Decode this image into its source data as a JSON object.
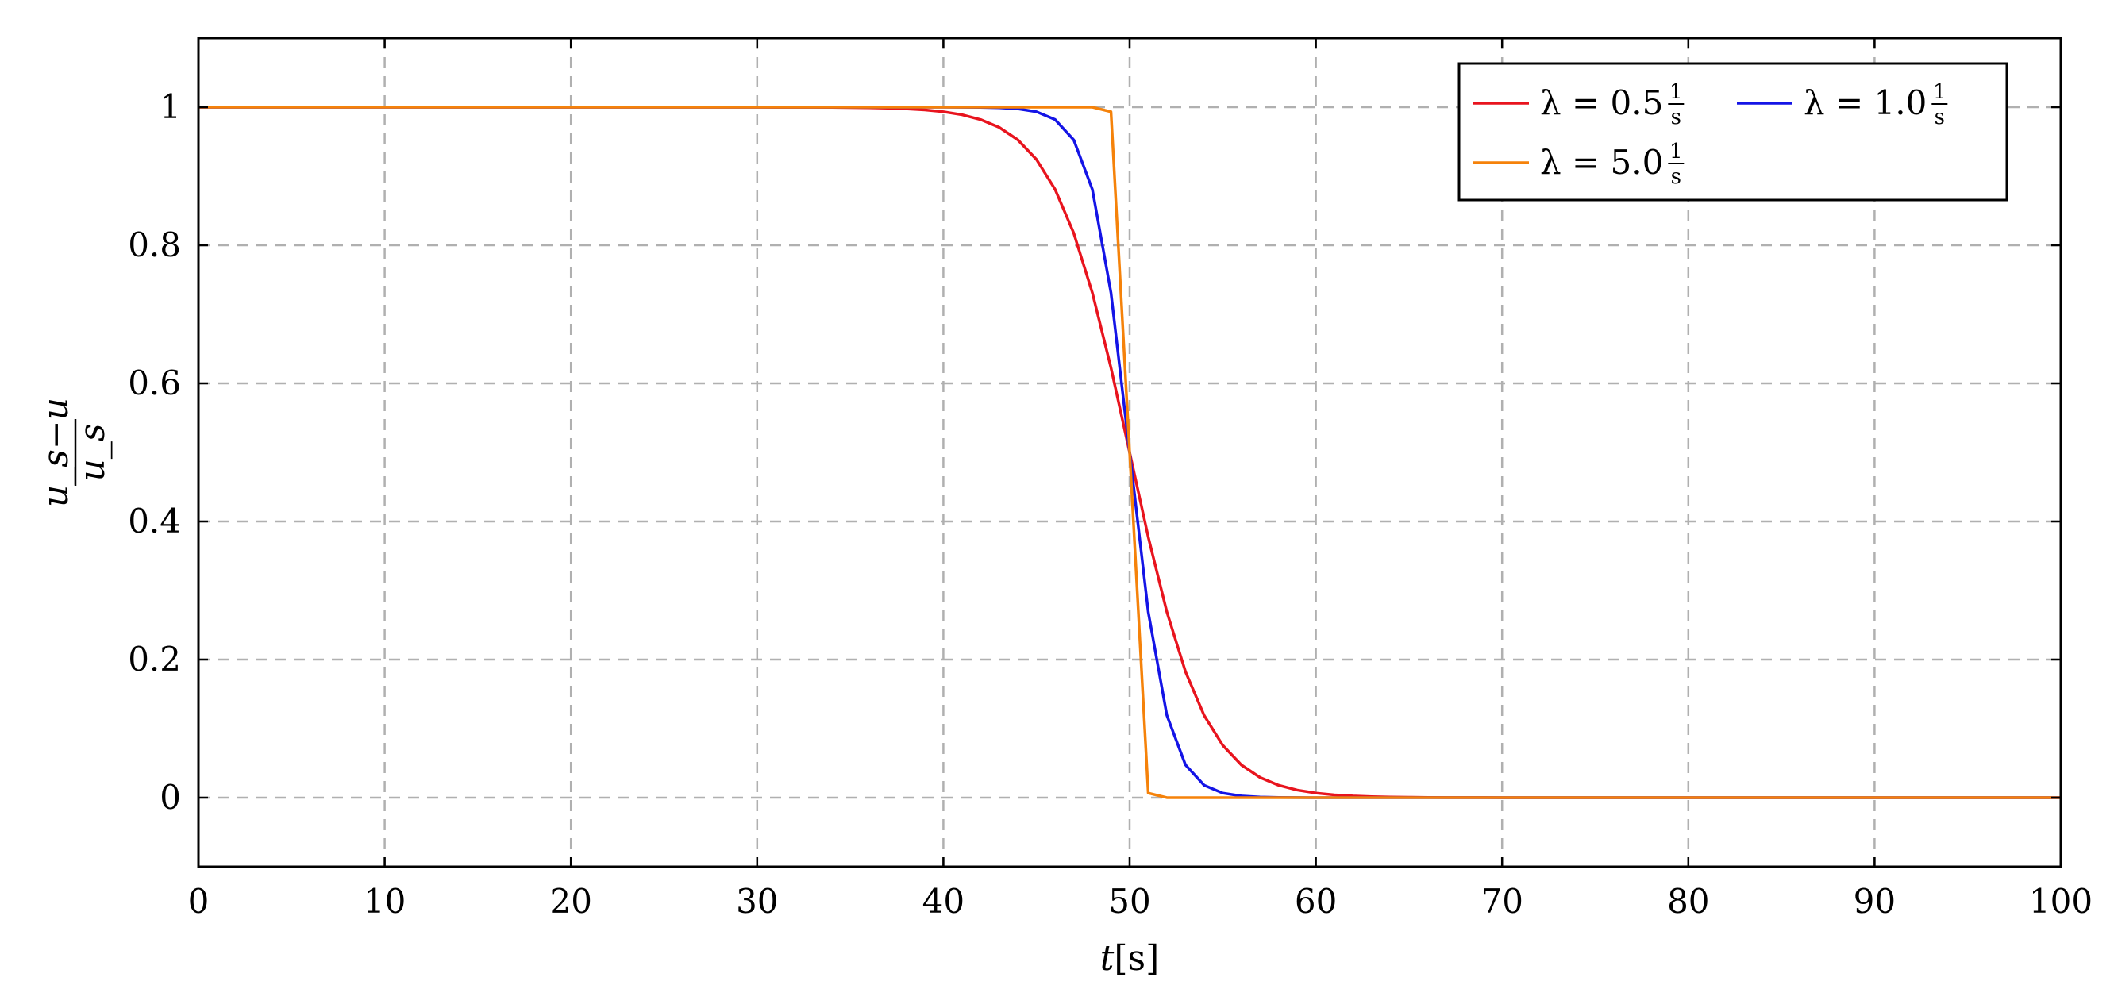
{
  "chart_data": {
    "type": "line",
    "xlabel_var": "t",
    "xlabel_unit": "[s]",
    "ylabel_num": "u_s−u",
    "ylabel_den": "u_s",
    "xlim": [
      0,
      100
    ],
    "ylim": [
      -0.1,
      1.1
    ],
    "xticks": [
      0,
      10,
      20,
      30,
      40,
      50,
      60,
      70,
      80,
      90,
      100
    ],
    "yticks": [
      0,
      0.2,
      0.4,
      0.6,
      0.8,
      1
    ],
    "ytick_labels": [
      "0",
      "0.2",
      "0.4",
      "0.6",
      "0.8",
      "1"
    ],
    "grid": true,
    "legend_position": "top-right",
    "series": [
      {
        "name": "λ = 0.5",
        "unit_num": "1",
        "unit_den": "s",
        "lambda": 0.5,
        "color": "#e8141e"
      },
      {
        "name": "λ = 1.0",
        "unit_num": "1",
        "unit_den": "s",
        "lambda": 1.0,
        "color": "#1414e6"
      },
      {
        "name": "λ = 5.0",
        "unit_num": "1",
        "unit_den": "s",
        "lambda": 5.0,
        "color": "#f5820a"
      }
    ]
  }
}
